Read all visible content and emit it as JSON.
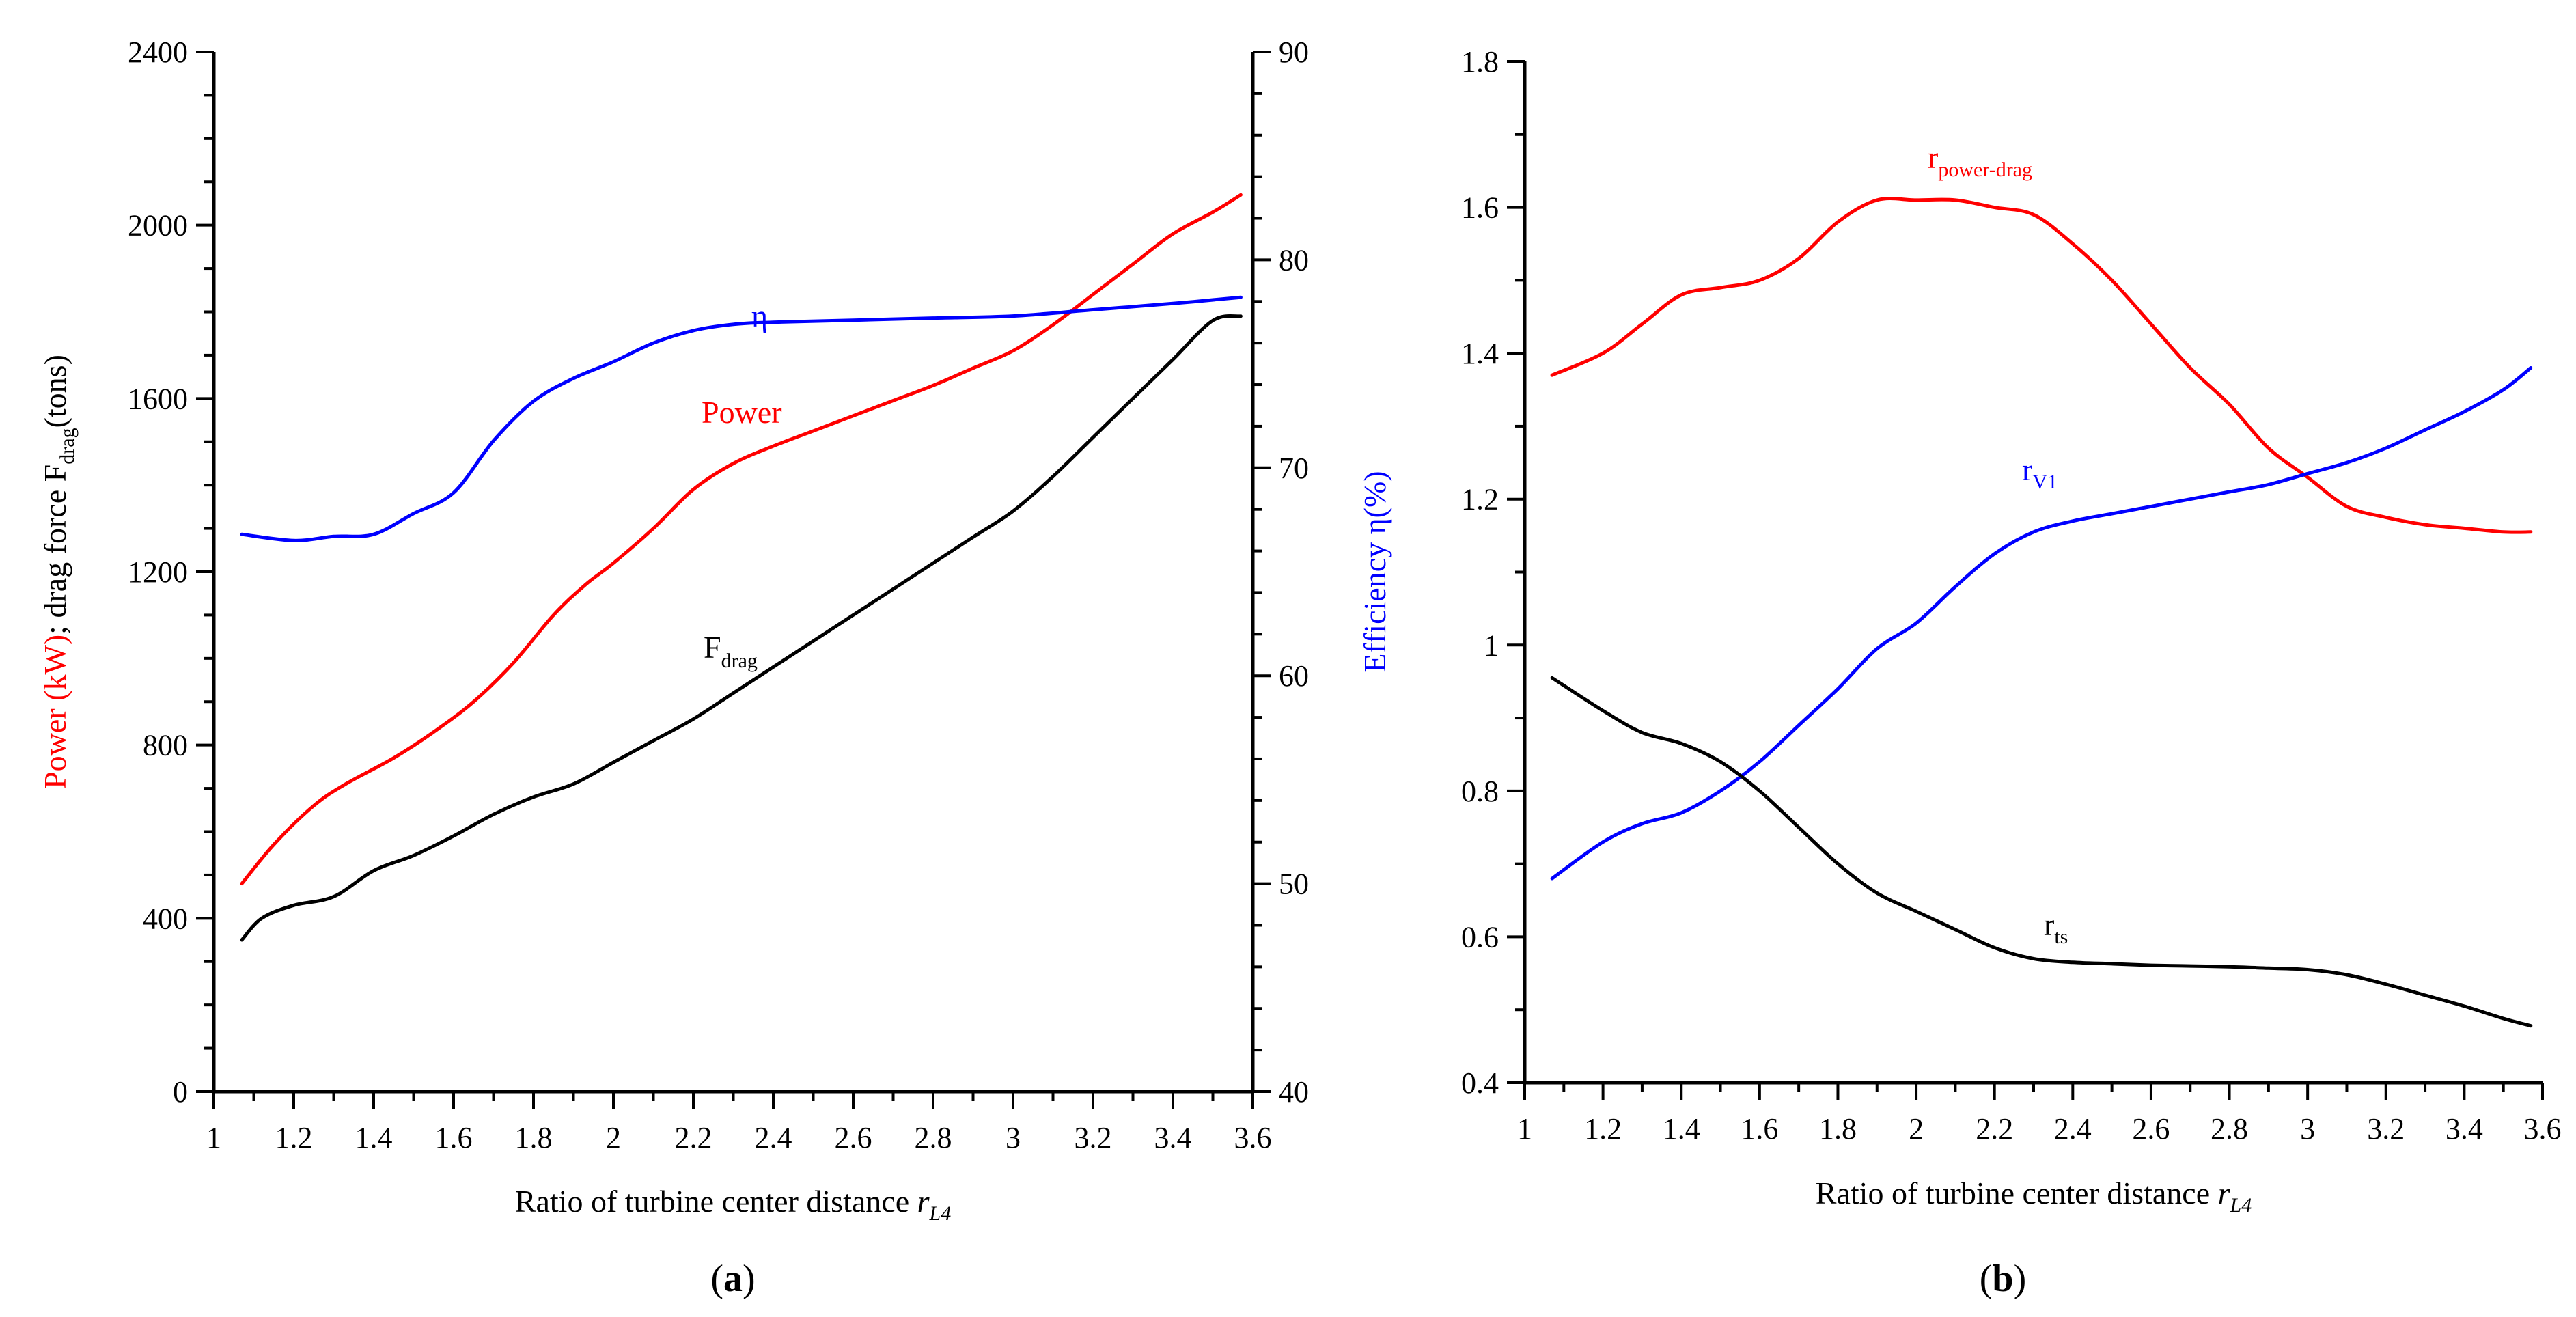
{
  "chart_data": [
    {
      "type": "line",
      "panel": "a",
      "caption_parts": [
        "(",
        "a",
        ")"
      ],
      "xlabel": "Ratio of turbine center distance ",
      "xlabel_var": "r",
      "xlabel_sub": "L4",
      "xlim": [
        1,
        3.6
      ],
      "x_ticks": [
        "1",
        "1.2",
        "1.4",
        "1.6",
        "1.8",
        "2",
        "2.2",
        "2.4",
        "2.6",
        "2.8",
        "3",
        "3.2",
        "3.4",
        "3.6"
      ],
      "ylabel_left_parts": {
        "power": "Power (kW)",
        "sep": "; drag force F",
        "sub": "drag",
        "end": "(tons)"
      },
      "ylim_left": [
        0,
        2400
      ],
      "y_ticks_left": [
        "0",
        "400",
        "800",
        "1200",
        "1600",
        "2000",
        "2400"
      ],
      "ylabel_right": "Efficiency η(%)",
      "ylim_right": [
        40,
        90
      ],
      "y_ticks_right": [
        "40",
        "50",
        "60",
        "70",
        "80",
        "90"
      ],
      "series": [
        {
          "name": "Power",
          "label": "Power",
          "axis": "left",
          "color": "#ff0000",
          "x": [
            1.07,
            1.15,
            1.25,
            1.33,
            1.45,
            1.55,
            1.65,
            1.75,
            1.85,
            1.93,
            2.0,
            2.1,
            2.2,
            2.3,
            2.4,
            2.5,
            2.6,
            2.7,
            2.8,
            2.9,
            3.0,
            3.1,
            3.2,
            3.3,
            3.4,
            3.5,
            3.57
          ],
          "values": [
            480,
            570,
            660,
            710,
            770,
            830,
            900,
            990,
            1100,
            1170,
            1220,
            1300,
            1390,
            1450,
            1490,
            1525,
            1560,
            1595,
            1630,
            1670,
            1710,
            1770,
            1840,
            1910,
            1980,
            2030,
            2070
          ]
        },
        {
          "name": "F_drag",
          "label": "F",
          "label_sub": "drag",
          "axis": "left",
          "color": "#000000",
          "x": [
            1.07,
            1.12,
            1.2,
            1.3,
            1.4,
            1.5,
            1.6,
            1.7,
            1.8,
            1.9,
            2.0,
            2.1,
            2.2,
            2.3,
            2.4,
            2.5,
            2.6,
            2.7,
            2.8,
            2.9,
            3.0,
            3.1,
            3.2,
            3.3,
            3.4,
            3.5,
            3.57
          ],
          "values": [
            350,
            400,
            430,
            450,
            510,
            545,
            590,
            640,
            680,
            710,
            760,
            810,
            860,
            920,
            980,
            1040,
            1100,
            1160,
            1220,
            1280,
            1340,
            1420,
            1510,
            1600,
            1690,
            1780,
            1790
          ]
        },
        {
          "name": "eta",
          "label": "η",
          "axis": "right",
          "color": "#0000ff",
          "x": [
            1.07,
            1.2,
            1.3,
            1.4,
            1.5,
            1.6,
            1.7,
            1.8,
            1.9,
            2.0,
            2.1,
            2.2,
            2.3,
            2.4,
            2.6,
            2.8,
            3.0,
            3.2,
            3.4,
            3.57
          ],
          "values": [
            66.8,
            66.5,
            66.7,
            66.8,
            67.8,
            68.8,
            71.3,
            73.2,
            74.3,
            75.1,
            76.0,
            76.6,
            76.9,
            77.0,
            77.1,
            77.2,
            77.3,
            77.6,
            77.9,
            78.2
          ]
        }
      ]
    },
    {
      "type": "line",
      "panel": "b",
      "caption_parts": [
        "(",
        "b",
        ")"
      ],
      "xlabel": "Ratio of turbine center distance ",
      "xlabel_var": "r",
      "xlabel_sub": "L4",
      "xlim": [
        1,
        3.6
      ],
      "x_ticks": [
        "1",
        "1.2",
        "1.4",
        "1.6",
        "1.8",
        "2",
        "2.2",
        "2.4",
        "2.6",
        "2.8",
        "3",
        "3.2",
        "3.4",
        "3.6"
      ],
      "ylim": [
        0.4,
        1.8
      ],
      "y_ticks": [
        "0.4",
        "0.6",
        "0.8",
        "1",
        "1.2",
        "1.4",
        "1.6",
        "1.8"
      ],
      "series": [
        {
          "name": "r_power-drag",
          "label": "r",
          "label_sub": "power-drag",
          "color": "#ff0000",
          "x": [
            1.07,
            1.2,
            1.3,
            1.4,
            1.5,
            1.6,
            1.7,
            1.8,
            1.9,
            2.0,
            2.1,
            2.2,
            2.3,
            2.4,
            2.5,
            2.6,
            2.7,
            2.8,
            2.9,
            3.0,
            3.1,
            3.2,
            3.3,
            3.4,
            3.5,
            3.57
          ],
          "values": [
            1.37,
            1.4,
            1.44,
            1.48,
            1.49,
            1.5,
            1.53,
            1.58,
            1.61,
            1.61,
            1.61,
            1.6,
            1.59,
            1.55,
            1.5,
            1.44,
            1.38,
            1.33,
            1.27,
            1.23,
            1.19,
            1.175,
            1.165,
            1.16,
            1.155,
            1.155
          ]
        },
        {
          "name": "r_V1",
          "label": "r",
          "label_sub": "V1",
          "color": "#0000ff",
          "x": [
            1.07,
            1.2,
            1.3,
            1.4,
            1.5,
            1.6,
            1.7,
            1.8,
            1.9,
            2.0,
            2.1,
            2.2,
            2.3,
            2.4,
            2.5,
            2.6,
            2.7,
            2.8,
            2.9,
            3.0,
            3.1,
            3.2,
            3.3,
            3.4,
            3.5,
            3.57
          ],
          "values": [
            0.68,
            0.73,
            0.755,
            0.77,
            0.8,
            0.84,
            0.89,
            0.94,
            0.995,
            1.03,
            1.08,
            1.125,
            1.155,
            1.17,
            1.18,
            1.19,
            1.2,
            1.21,
            1.22,
            1.235,
            1.25,
            1.27,
            1.295,
            1.32,
            1.35,
            1.38
          ]
        },
        {
          "name": "r_ts",
          "label": "r",
          "label_sub": "ts",
          "color": "#000000",
          "x": [
            1.07,
            1.2,
            1.3,
            1.4,
            1.5,
            1.6,
            1.7,
            1.8,
            1.9,
            2.0,
            2.1,
            2.2,
            2.3,
            2.4,
            2.5,
            2.6,
            2.7,
            2.8,
            2.9,
            3.0,
            3.1,
            3.2,
            3.3,
            3.4,
            3.5,
            3.57
          ],
          "values": [
            0.955,
            0.91,
            0.88,
            0.865,
            0.84,
            0.8,
            0.75,
            0.7,
            0.66,
            0.635,
            0.61,
            0.585,
            0.57,
            0.565,
            0.563,
            0.561,
            0.56,
            0.559,
            0.557,
            0.555,
            0.548,
            0.535,
            0.52,
            0.505,
            0.488,
            0.478
          ]
        }
      ]
    }
  ]
}
